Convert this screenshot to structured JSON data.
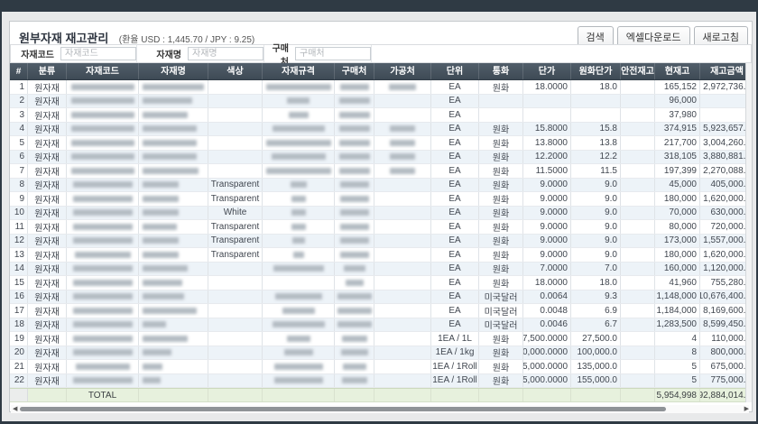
{
  "header": {
    "title": "원부자재 재고관리",
    "exchange_note": "(환율 USD : 1,445.70 / JPY : 9.25)",
    "buttons": [
      {
        "name": "search-button",
        "label": "검색"
      },
      {
        "name": "excel-download-button",
        "label": "엑셀다운로드"
      },
      {
        "name": "refresh-button",
        "label": "새로고침"
      }
    ]
  },
  "filters": [
    {
      "name": "material-code-filter",
      "label": "자재코드",
      "placeholder": "자재코드",
      "value": ""
    },
    {
      "name": "material-name-filter",
      "label": "자재명",
      "placeholder": "자재명",
      "value": ""
    },
    {
      "name": "vendor-filter",
      "label": "구매처",
      "placeholder": "구매처",
      "value": ""
    }
  ],
  "theme": {
    "frame_color": "#2f3a44",
    "grid_header_color": "#45515d",
    "alt_row_color": "#edf3f8",
    "total_row_color": "#e7f1dd"
  },
  "grid": {
    "columns": [
      {
        "key": "no",
        "label": "#"
      },
      {
        "key": "category",
        "label": "분류"
      },
      {
        "key": "code",
        "label": "자재코드"
      },
      {
        "key": "name",
        "label": "자재명"
      },
      {
        "key": "color",
        "label": "색상"
      },
      {
        "key": "spec",
        "label": "자재규격"
      },
      {
        "key": "vendor",
        "label": "구매처"
      },
      {
        "key": "proc",
        "label": "가공처"
      },
      {
        "key": "unit",
        "label": "단위"
      },
      {
        "key": "currency",
        "label": "통화"
      },
      {
        "key": "price",
        "label": "단가"
      },
      {
        "key": "krw_price",
        "label": "원화단가"
      },
      {
        "key": "safety",
        "label": "안전재고"
      },
      {
        "key": "stock",
        "label": "현재고"
      },
      {
        "key": "amount",
        "label": "재고금액"
      }
    ],
    "rows": [
      {
        "no": "1",
        "category": "원자재",
        "color": "",
        "unit": "EA",
        "currency": "원화",
        "price": "18.0000",
        "krw_price": "18.0",
        "safety": "",
        "stock": "165,152",
        "amount": "2,972,736.0",
        "masks": {
          "code": 70,
          "name": 68,
          "spec": 72,
          "vendor": 32,
          "proc": 30
        }
      },
      {
        "no": "2",
        "category": "원자재",
        "color": "",
        "unit": "EA",
        "currency": "",
        "price": "",
        "krw_price": "",
        "safety": "",
        "stock": "96,000",
        "amount": "",
        "masks": {
          "code": 70,
          "name": 55,
          "spec": 25,
          "vendor": 34
        }
      },
      {
        "no": "3",
        "category": "원자재",
        "color": "",
        "unit": "EA",
        "currency": "",
        "price": "",
        "krw_price": "",
        "safety": "",
        "stock": "37,980",
        "amount": "",
        "masks": {
          "code": 70,
          "name": 50,
          "spec": 22,
          "vendor": 34
        }
      },
      {
        "no": "4",
        "category": "원자재",
        "color": "",
        "unit": "EA",
        "currency": "원화",
        "price": "15.8000",
        "krw_price": "15.8",
        "safety": "",
        "stock": "374,915",
        "amount": "5,923,657.0",
        "masks": {
          "code": 70,
          "name": 60,
          "spec": 58,
          "vendor": 34,
          "proc": 28
        }
      },
      {
        "no": "5",
        "category": "원자재",
        "color": "",
        "unit": "EA",
        "currency": "원화",
        "price": "13.8000",
        "krw_price": "13.8",
        "safety": "",
        "stock": "217,700",
        "amount": "3,004,260.0",
        "masks": {
          "code": 70,
          "name": 60,
          "spec": 72,
          "vendor": 34,
          "proc": 28
        }
      },
      {
        "no": "6",
        "category": "원자재",
        "color": "",
        "unit": "EA",
        "currency": "원화",
        "price": "12.2000",
        "krw_price": "12.2",
        "safety": "",
        "stock": "318,105",
        "amount": "3,880,881.0",
        "masks": {
          "code": 70,
          "name": 60,
          "spec": 60,
          "vendor": 34,
          "proc": 28
        }
      },
      {
        "no": "7",
        "category": "원자재",
        "color": "",
        "unit": "EA",
        "currency": "원화",
        "price": "11.5000",
        "krw_price": "11.5",
        "safety": "",
        "stock": "197,399",
        "amount": "2,270,088.5",
        "masks": {
          "code": 70,
          "name": 62,
          "spec": 72,
          "vendor": 34,
          "proc": 28
        }
      },
      {
        "no": "8",
        "category": "원자재",
        "color": "Transparent",
        "unit": "EA",
        "currency": "원화",
        "price": "9.0000",
        "krw_price": "9.0",
        "safety": "",
        "stock": "45,000",
        "amount": "405,000.0",
        "masks": {
          "code": 66,
          "name": 40,
          "spec": 18,
          "vendor": 32
        }
      },
      {
        "no": "9",
        "category": "원자재",
        "color": "Transparent",
        "unit": "EA",
        "currency": "원화",
        "price": "9.0000",
        "krw_price": "9.0",
        "safety": "",
        "stock": "180,000",
        "amount": "1,620,000.0",
        "masks": {
          "code": 66,
          "name": 40,
          "spec": 16,
          "vendor": 32
        }
      },
      {
        "no": "10",
        "category": "원자재",
        "color": "White",
        "unit": "EA",
        "currency": "원화",
        "price": "9.0000",
        "krw_price": "9.0",
        "safety": "",
        "stock": "70,000",
        "amount": "630,000.0",
        "masks": {
          "code": 66,
          "name": 40,
          "spec": 16,
          "vendor": 32
        }
      },
      {
        "no": "11",
        "category": "원자재",
        "color": "Transparent",
        "unit": "EA",
        "currency": "원화",
        "price": "9.0000",
        "krw_price": "9.0",
        "safety": "",
        "stock": "80,000",
        "amount": "720,000.0",
        "masks": {
          "code": 66,
          "name": 38,
          "spec": 16,
          "vendor": 32
        }
      },
      {
        "no": "12",
        "category": "원자재",
        "color": "Transparent",
        "unit": "EA",
        "currency": "원화",
        "price": "9.0000",
        "krw_price": "9.0",
        "safety": "",
        "stock": "173,000",
        "amount": "1,557,000.0",
        "masks": {
          "code": 66,
          "name": 40,
          "spec": 14,
          "vendor": 32
        }
      },
      {
        "no": "13",
        "category": "원자재",
        "color": "Transparent",
        "unit": "EA",
        "currency": "원화",
        "price": "9.0000",
        "krw_price": "9.0",
        "safety": "",
        "stock": "180,000",
        "amount": "1,620,000.0",
        "masks": {
          "code": 62,
          "name": 40,
          "spec": 12,
          "vendor": 32
        }
      },
      {
        "no": "14",
        "category": "원자재",
        "color": "",
        "unit": "EA",
        "currency": "원화",
        "price": "7.0000",
        "krw_price": "7.0",
        "safety": "",
        "stock": "160,000",
        "amount": "1,120,000.0",
        "masks": {
          "code": 66,
          "name": 50,
          "spec": 56,
          "vendor": 24
        }
      },
      {
        "no": "15",
        "category": "원자재",
        "color": "",
        "unit": "EA",
        "currency": "원화",
        "price": "18.0000",
        "krw_price": "18.0",
        "safety": "",
        "stock": "41,960",
        "amount": "755,280.0",
        "masks": {
          "code": 66,
          "name": 44,
          "vendor": 20
        }
      },
      {
        "no": "16",
        "category": "원자재",
        "color": "",
        "unit": "EA",
        "currency": "미국달러",
        "price": "0.0064",
        "krw_price": "9.3",
        "safety": "",
        "stock": "1,148,000",
        "amount": "10,676,400.0",
        "masks": {
          "code": 66,
          "name": 46,
          "spec": 52,
          "vendor": 38
        }
      },
      {
        "no": "17",
        "category": "원자재",
        "color": "",
        "unit": "EA",
        "currency": "미국달러",
        "price": "0.0048",
        "krw_price": "6.9",
        "safety": "",
        "stock": "1,184,000",
        "amount": "8,169,600.0",
        "masks": {
          "code": 66,
          "name": 60,
          "spec": 36,
          "vendor": 38
        }
      },
      {
        "no": "18",
        "category": "원자재",
        "color": "",
        "unit": "EA",
        "currency": "미국달러",
        "price": "0.0046",
        "krw_price": "6.7",
        "safety": "",
        "stock": "1,283,500",
        "amount": "8,599,450.0",
        "masks": {
          "code": 66,
          "name": 26,
          "spec": 58,
          "vendor": 38
        }
      },
      {
        "no": "19",
        "category": "원자재",
        "color": "",
        "unit": "1EA / 1L",
        "currency": "원화",
        "price": "27,500.0000",
        "krw_price": "27,500.0",
        "safety": "",
        "stock": "4",
        "amount": "110,000.0",
        "masks": {
          "code": 66,
          "name": 50,
          "spec": 26,
          "vendor": 28
        }
      },
      {
        "no": "20",
        "category": "원자재",
        "color": "",
        "unit": "1EA / 1kg",
        "currency": "원화",
        "price": "100,000.0000",
        "krw_price": "100,000.0",
        "safety": "",
        "stock": "8",
        "amount": "800,000.0",
        "masks": {
          "code": 66,
          "name": 32,
          "spec": 32,
          "vendor": 30
        }
      },
      {
        "no": "21",
        "category": "원자재",
        "color": "",
        "unit": "1EA / 1Roll",
        "currency": "원화",
        "price": "135,000.0000",
        "krw_price": "135,000.0",
        "safety": "",
        "stock": "5",
        "amount": "675,000.0",
        "masks": {
          "code": 60,
          "name": 22,
          "spec": 54,
          "vendor": 26
        }
      },
      {
        "no": "22",
        "category": "원자재",
        "color": "",
        "unit": "1EA / 1Roll",
        "currency": "원화",
        "price": "155,000.0000",
        "krw_price": "155,000.0",
        "safety": "",
        "stock": "5",
        "amount": "775,000.0",
        "masks": {
          "code": 66,
          "name": 20,
          "spec": 54,
          "vendor": 28
        }
      }
    ],
    "total": {
      "label": "TOTAL",
      "stock": "5,954,998",
      "amount": "92,884,014.1"
    }
  }
}
